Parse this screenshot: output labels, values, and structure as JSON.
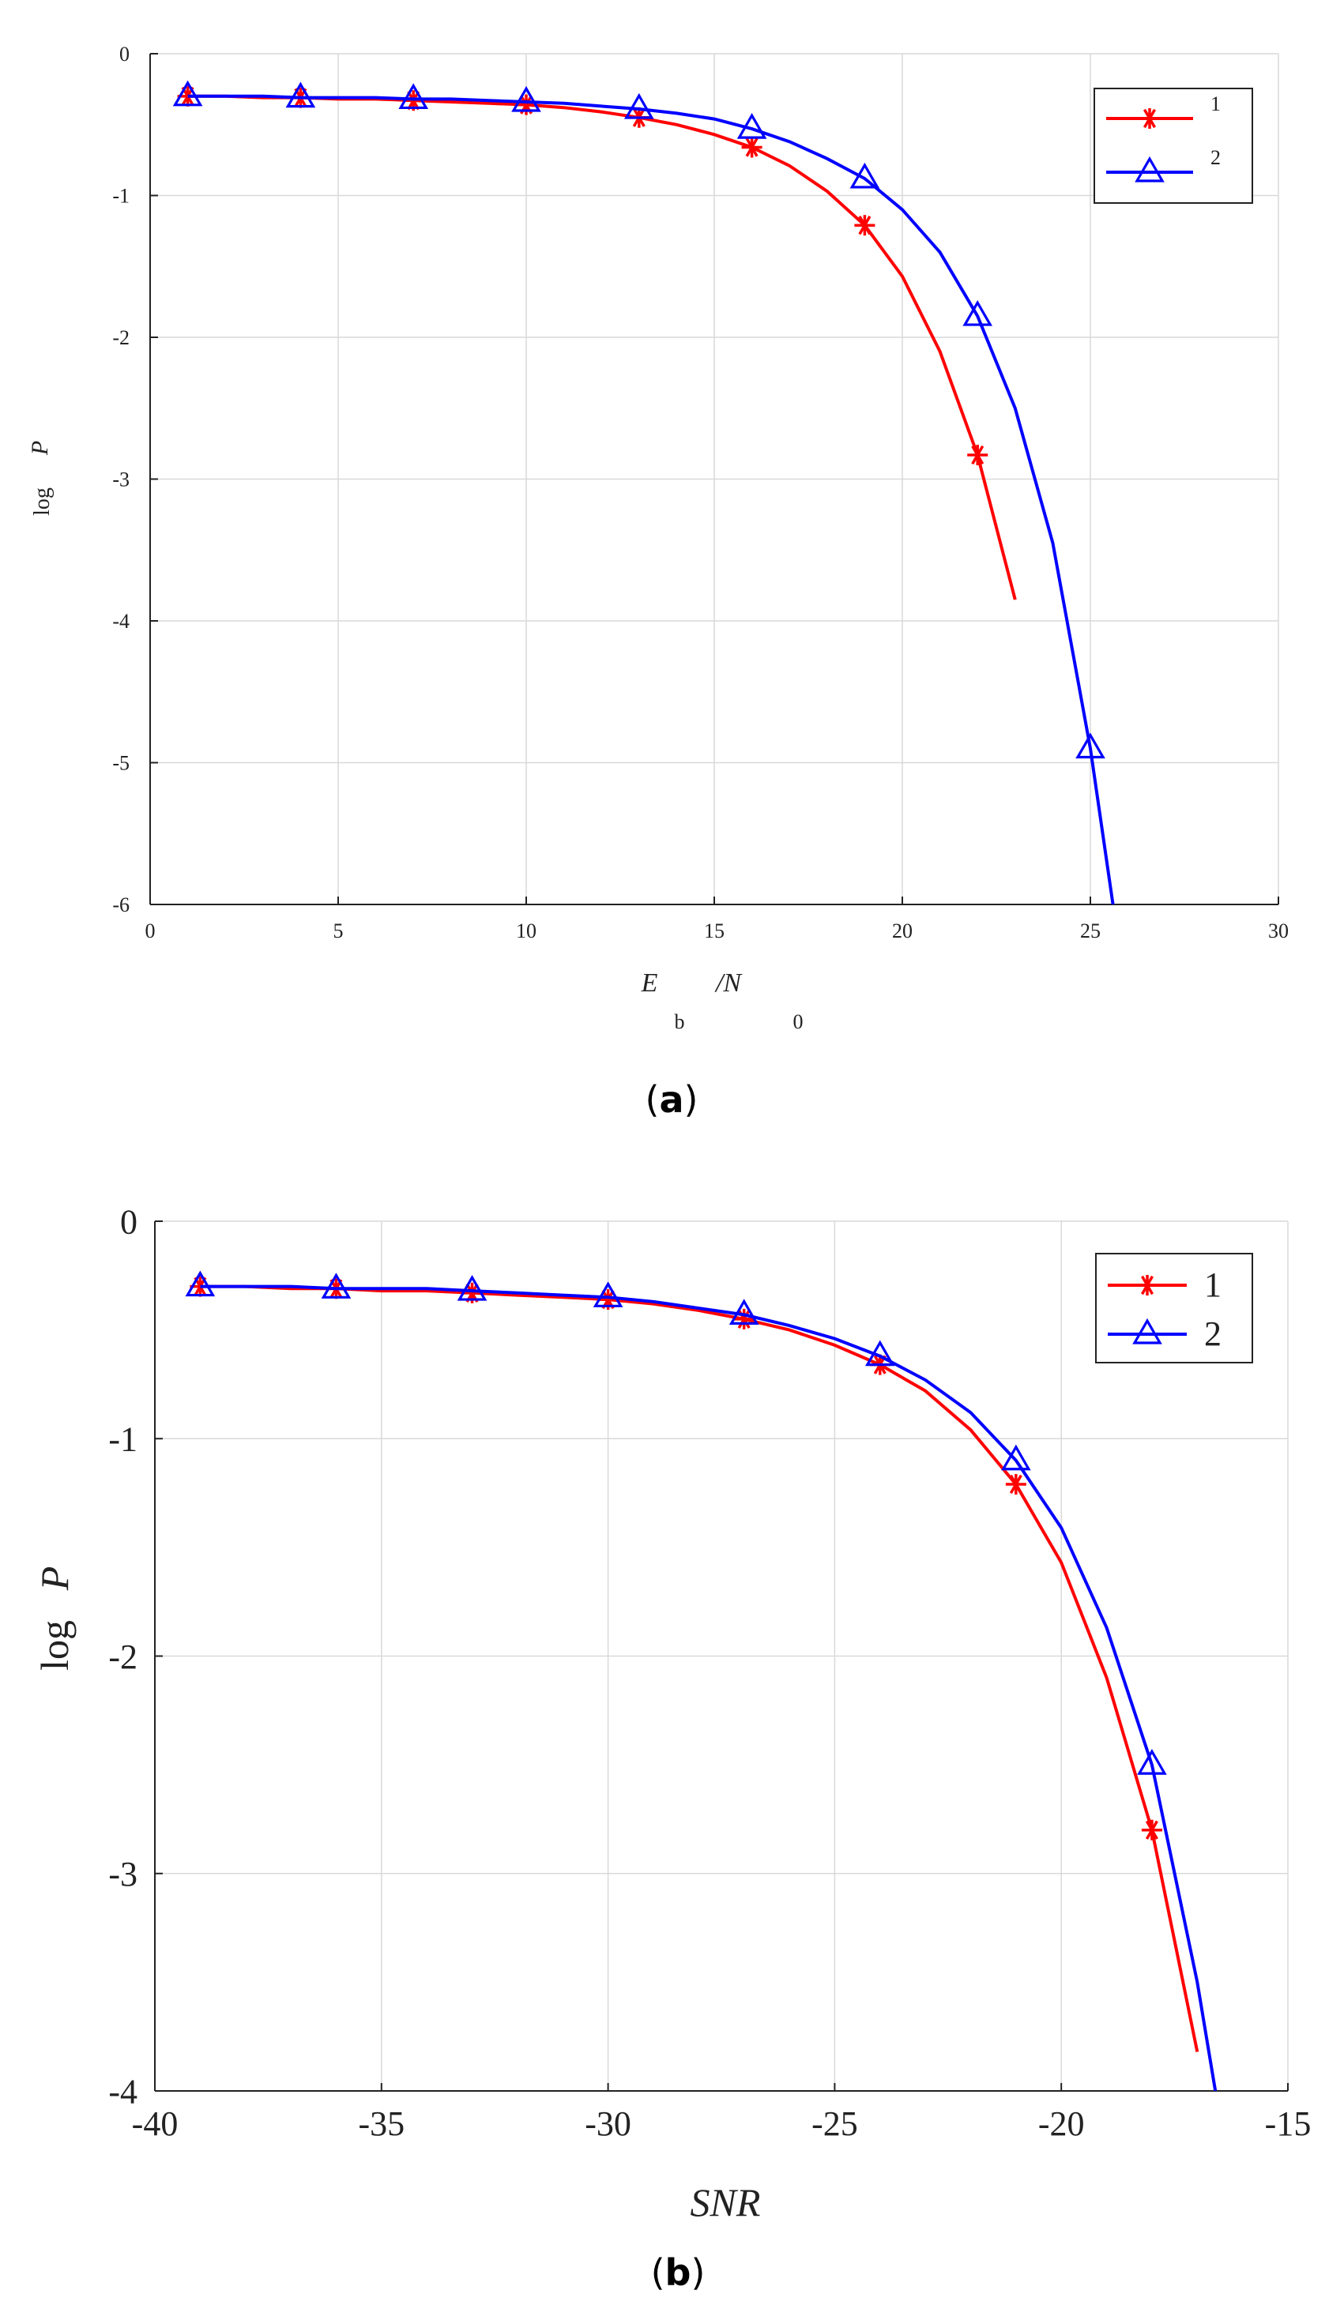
{
  "charts": [
    {
      "caption_letter": "a",
      "xlabel_main": "E",
      "xlabel_sub1": "b",
      "xlabel_sep": "/N",
      "xlabel_sub2": "0",
      "ylabel_main": "log",
      "ylabel_var": "P"
    },
    {
      "caption_letter": "b",
      "xlabel": "SNR",
      "ylabel_main": "log",
      "ylabel_var": "P"
    }
  ],
  "chart_data": [
    {
      "type": "line",
      "xlabel": "Eb/N0",
      "ylabel": "log P",
      "xlim": [
        0,
        30
      ],
      "ylim": [
        -6,
        0
      ],
      "xticks": [
        0,
        5,
        10,
        15,
        20,
        25,
        30
      ],
      "yticks": [
        0,
        -1,
        -2,
        -3,
        -4,
        -5,
        -6
      ],
      "grid": true,
      "legend_position": "top-right",
      "series": [
        {
          "name": "1",
          "color": "#ff0000",
          "marker": "asterisk",
          "x": [
            1,
            2,
            3,
            4,
            5,
            6,
            7,
            8,
            9,
            10,
            11,
            12,
            13,
            14,
            15,
            16,
            17,
            18,
            19,
            20,
            21,
            22,
            23
          ],
          "y": [
            -0.3,
            -0.3,
            -0.31,
            -0.31,
            -0.32,
            -0.32,
            -0.33,
            -0.34,
            -0.35,
            -0.36,
            -0.38,
            -0.41,
            -0.45,
            -0.5,
            -0.57,
            -0.66,
            -0.79,
            -0.97,
            -1.21,
            -1.57,
            -2.1,
            -2.83,
            -3.85
          ],
          "marker_x": [
            1,
            4,
            7,
            10,
            13,
            16,
            19,
            22
          ]
        },
        {
          "name": "2",
          "color": "#0000ff",
          "marker": "triangle",
          "x": [
            1,
            2,
            3,
            4,
            5,
            6,
            7,
            8,
            9,
            10,
            11,
            12,
            13,
            14,
            15,
            16,
            17,
            18,
            19,
            20,
            21,
            22,
            23,
            24,
            25,
            25.6
          ],
          "y": [
            -0.3,
            -0.3,
            -0.3,
            -0.31,
            -0.31,
            -0.31,
            -0.32,
            -0.32,
            -0.33,
            -0.34,
            -0.35,
            -0.37,
            -0.39,
            -0.42,
            -0.46,
            -0.53,
            -0.62,
            -0.74,
            -0.88,
            -1.1,
            -1.4,
            -1.85,
            -2.5,
            -3.45,
            -4.9,
            -6.0
          ],
          "marker_x": [
            1,
            4,
            7,
            10,
            13,
            16,
            19,
            22,
            25
          ]
        }
      ]
    },
    {
      "type": "line",
      "xlabel": "SNR",
      "ylabel": "log P",
      "xlim": [
        -40,
        -15
      ],
      "ylim": [
        -4,
        0
      ],
      "xticks": [
        -40,
        -35,
        -30,
        -25,
        -20,
        -15
      ],
      "yticks": [
        0,
        -1,
        -2,
        -3,
        -4
      ],
      "grid": true,
      "legend_position": "top-right",
      "series": [
        {
          "name": "1",
          "color": "#ff0000",
          "marker": "asterisk",
          "x": [
            -39,
            -38,
            -37,
            -36,
            -35,
            -34,
            -33,
            -32,
            -31,
            -30,
            -29,
            -28,
            -27,
            -26,
            -25,
            -24,
            -23,
            -22,
            -21,
            -20,
            -19,
            -18,
            -17
          ],
          "y": [
            -0.3,
            -0.3,
            -0.31,
            -0.31,
            -0.32,
            -0.32,
            -0.33,
            -0.34,
            -0.35,
            -0.36,
            -0.38,
            -0.41,
            -0.45,
            -0.5,
            -0.57,
            -0.66,
            -0.78,
            -0.96,
            -1.21,
            -1.57,
            -2.1,
            -2.8,
            -3.82
          ],
          "marker_x": [
            -39,
            -36,
            -33,
            -30,
            -27,
            -24,
            -21,
            -18
          ]
        },
        {
          "name": "2",
          "color": "#0000ff",
          "marker": "triangle",
          "x": [
            -39,
            -38,
            -37,
            -36,
            -35,
            -34,
            -33,
            -32,
            -31,
            -30,
            -29,
            -28,
            -27,
            -26,
            -25,
            -24,
            -23,
            -22,
            -21,
            -20,
            -19,
            -18,
            -17,
            -16.6
          ],
          "y": [
            -0.3,
            -0.3,
            -0.3,
            -0.31,
            -0.31,
            -0.31,
            -0.32,
            -0.33,
            -0.34,
            -0.35,
            -0.37,
            -0.4,
            -0.43,
            -0.48,
            -0.54,
            -0.62,
            -0.73,
            -0.88,
            -1.1,
            -1.41,
            -1.87,
            -2.5,
            -3.5,
            -4.0
          ],
          "marker_x": [
            -39,
            -36,
            -33,
            -30,
            -27,
            -24,
            -21,
            -18
          ]
        }
      ]
    }
  ]
}
